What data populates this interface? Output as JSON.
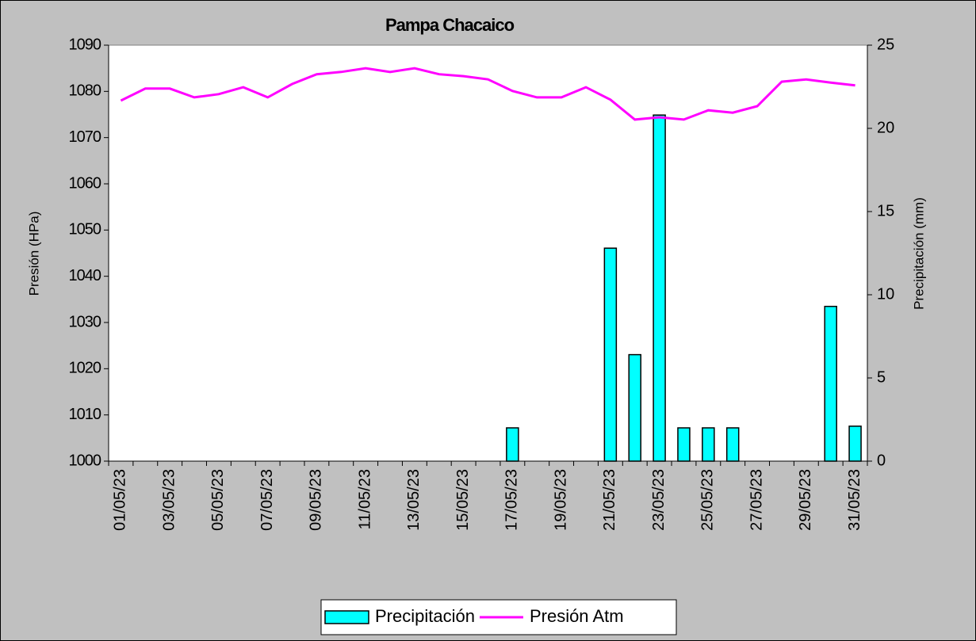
{
  "chart_data": {
    "type": "combo",
    "title": "Pampa Chacaico",
    "y_label": "Presión (HPa)",
    "y2_label": "Precipitación (mm)",
    "categories": [
      "01/05/23",
      null,
      "03/05/23",
      null,
      "05/05/23",
      null,
      "07/05/23",
      null,
      "09/05/23",
      null,
      "11/05/23",
      null,
      "13/05/23",
      null,
      "15/05/23",
      null,
      "17/05/23",
      null,
      "19/05/23",
      null,
      "21/05/23",
      null,
      "23/05/23",
      null,
      "25/05/23",
      null,
      "27/05/23",
      null,
      "29/05/23",
      null,
      "31/05/23"
    ],
    "ylim": [
      1000,
      1090
    ],
    "yticks": [
      1000,
      1010,
      1020,
      1030,
      1040,
      1050,
      1060,
      1070,
      1080,
      1090
    ],
    "y2lim": [
      0,
      25
    ],
    "y2ticks": [
      0,
      5,
      10,
      15,
      20,
      25
    ],
    "series": [
      {
        "name": "Precipitación",
        "type": "bar",
        "axis": "y2",
        "color": "#00ffff",
        "values": [
          0,
          0,
          0,
          0,
          0,
          0,
          0,
          0,
          0,
          0,
          0,
          0,
          0,
          0,
          0,
          0,
          2.0,
          0,
          0,
          0,
          12.8,
          6.4,
          20.8,
          2.0,
          2.0,
          2.0,
          0,
          0,
          0,
          9.3,
          2.1
        ]
      },
      {
        "name": "Presión Atm",
        "type": "line",
        "color": "#ff00ff",
        "values": [
          1078.0,
          1080.6,
          1080.6,
          1078.7,
          1079.4,
          1080.9,
          1078.7,
          1081.6,
          1083.7,
          1084.2,
          1085.0,
          1084.2,
          1085.0,
          1083.7,
          1083.3,
          1082.6,
          1080.1,
          1078.7,
          1078.7,
          1080.9,
          1078.2,
          1073.9,
          1074.4,
          1073.9,
          1075.9,
          1075.4,
          1076.8,
          1082.1,
          1082.6,
          1081.9,
          1081.3
        ]
      }
    ]
  }
}
